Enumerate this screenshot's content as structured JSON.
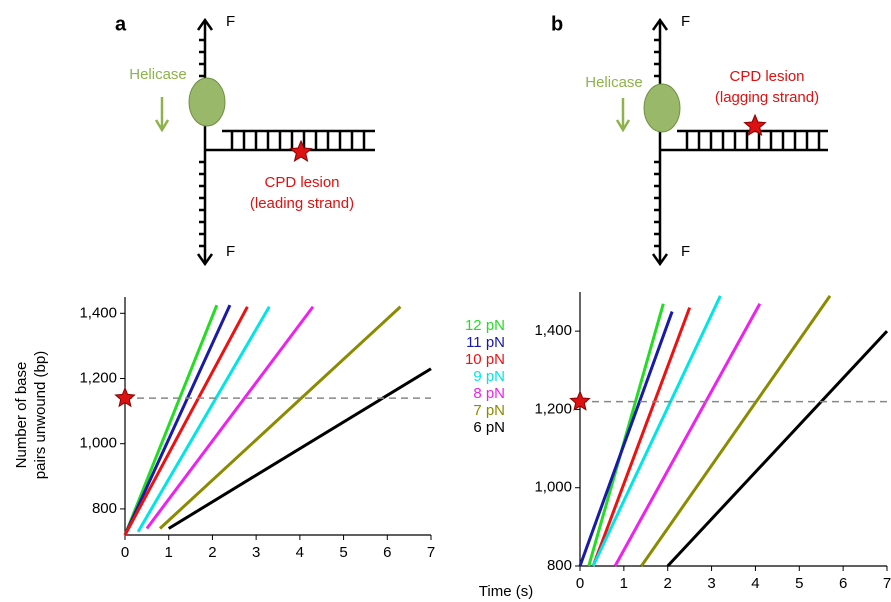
{
  "diagrams": [
    {
      "label": "a",
      "force_top": "F",
      "force_bottom": "F",
      "helicase": "Helicase",
      "lesion": "CPD lesion",
      "strand": "(leading strand)"
    },
    {
      "label": "b",
      "force_top": "F",
      "force_bottom": "F",
      "helicase": "Helicase",
      "lesion": "CPD lesion",
      "strand": "(lagging strand)"
    }
  ],
  "xlabel": "Time (s)",
  "ylabel": [
    "Number of base",
    "pairs unwound (bp)"
  ],
  "chart_data": [
    {
      "type": "line",
      "xlim": [
        0,
        7
      ],
      "xticks": [
        0,
        1,
        2,
        3,
        4,
        5,
        6,
        7
      ],
      "ylim": [
        720,
        1450
      ],
      "yticks": [
        800,
        {
          "value": 1000,
          "label": "1,000"
        },
        {
          "value": 1200,
          "label": "1,200"
        },
        {
          "value": 1400,
          "label": "1,400"
        }
      ],
      "reference_line": 1140,
      "series": [
        {
          "name": "12 pN",
          "color": "#22dd22",
          "x": [
            0,
            2.1
          ],
          "values": [
            720,
            1425
          ]
        },
        {
          "name": "11 pN",
          "color": "#1a1aaa",
          "x": [
            0,
            2.4
          ],
          "values": [
            720,
            1425
          ]
        },
        {
          "name": "10 pN",
          "color": "#ee1111",
          "x": [
            0,
            2.8
          ],
          "values": [
            720,
            1420
          ]
        },
        {
          "name": "9 pN",
          "color": "#00e5e5",
          "x": [
            0.3,
            3.3
          ],
          "values": [
            730,
            1420
          ]
        },
        {
          "name": "8 pN",
          "color": "#ee22ee",
          "x": [
            0.5,
            4.3
          ],
          "values": [
            740,
            1420
          ]
        },
        {
          "name": "7 pN",
          "color": "#8b8b00",
          "x": [
            0.8,
            6.3
          ],
          "values": [
            740,
            1420
          ]
        },
        {
          "name": "6 pN",
          "color": "#000000",
          "x": [
            1.0,
            7
          ],
          "values": [
            740,
            1230
          ]
        }
      ]
    },
    {
      "type": "line",
      "xlim": [
        0,
        7
      ],
      "xticks": [
        0,
        1,
        2,
        3,
        4,
        5,
        6,
        7
      ],
      "ylim": [
        800,
        1500
      ],
      "yticks": [
        800,
        {
          "value": 1000,
          "label": "1,000"
        },
        {
          "value": 1200,
          "label": "1,200"
        },
        {
          "value": 1400,
          "label": "1,400"
        }
      ],
      "reference_line": 1220,
      "series": [
        {
          "color": "#22dd22",
          "x": [
            0.2,
            1.9
          ],
          "values": [
            800,
            1470
          ]
        },
        {
          "color": "#1a1aaa",
          "x": [
            0,
            2.1
          ],
          "values": [
            800,
            1450
          ]
        },
        {
          "color": "#ee1111",
          "x": [
            0.3,
            2.5
          ],
          "values": [
            800,
            1460
          ]
        },
        {
          "color": "#00e5e5",
          "x": [
            0.3,
            3.2
          ],
          "values": [
            800,
            1490
          ]
        },
        {
          "color": "#ee22ee",
          "x": [
            0.8,
            4.1
          ],
          "values": [
            800,
            1470
          ]
        },
        {
          "color": "#8b8b00",
          "x": [
            1.4,
            5.7
          ],
          "values": [
            800,
            1490
          ]
        },
        {
          "color": "#000000",
          "x": [
            2.0,
            7
          ],
          "values": [
            800,
            1400
          ]
        }
      ]
    }
  ]
}
